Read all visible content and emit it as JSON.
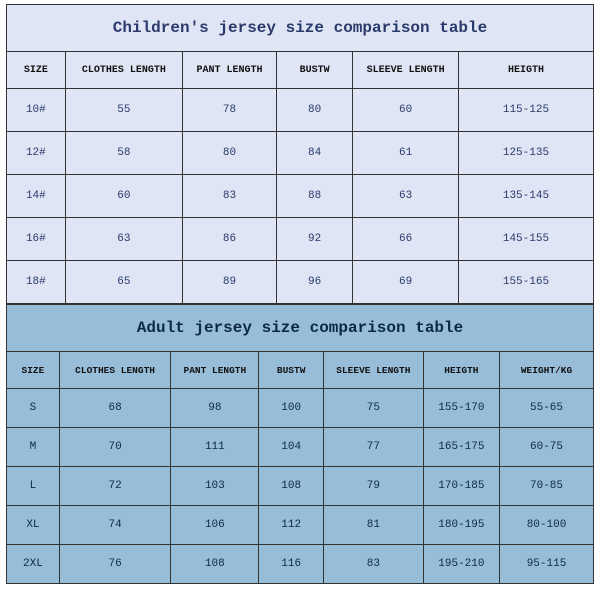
{
  "children": {
    "title": "Children's jersey size comparison table",
    "columns": [
      "SIZE",
      "CLOTHES LENGTH",
      "PANT LENGTH",
      "BUSTW",
      "SLEEVE LENGTH",
      "HEIGTH"
    ],
    "col_widths": [
      "10%",
      "20%",
      "16%",
      "13%",
      "18%",
      "23%"
    ],
    "rows": [
      [
        "10#",
        "55",
        "78",
        "80",
        "60",
        "115-125"
      ],
      [
        "12#",
        "58",
        "80",
        "84",
        "61",
        "125-135"
      ],
      [
        "14#",
        "60",
        "83",
        "88",
        "63",
        "135-145"
      ],
      [
        "16#",
        "63",
        "86",
        "92",
        "66",
        "145-155"
      ],
      [
        "18#",
        "65",
        "89",
        "96",
        "69",
        "155-165"
      ]
    ],
    "title_color": "#2a3a6a",
    "cell_bg": "#dfe5f5",
    "border_color": "#333333",
    "title_fontsize": 16,
    "head_fontsize": 10,
    "row_fontsize": 11
  },
  "adult": {
    "title": "Adult jersey size comparison table",
    "columns": [
      "SIZE",
      "CLOTHES LENGTH",
      "PANT LENGTH",
      "BUSTW",
      "SLEEVE LENGTH",
      "HEIGTH",
      "WEIGHT/KG"
    ],
    "col_widths": [
      "9%",
      "19%",
      "15%",
      "11%",
      "17%",
      "13%",
      "16%"
    ],
    "rows": [
      [
        "S",
        "68",
        "98",
        "100",
        "75",
        "155-170",
        "55-65"
      ],
      [
        "M",
        "70",
        "111",
        "104",
        "77",
        "165-175",
        "60-75"
      ],
      [
        "L",
        "72",
        "103",
        "108",
        "79",
        "170-185",
        "70-85"
      ],
      [
        "XL",
        "74",
        "106",
        "112",
        "81",
        "180-195",
        "80-100"
      ],
      [
        "2XL",
        "76",
        "108",
        "116",
        "83",
        "195-210",
        "95-115"
      ]
    ],
    "title_color": "#0d2a45",
    "cell_bg": "#97bdd9",
    "border_color": "#333333",
    "title_fontsize": 16,
    "head_fontsize": 9.5,
    "row_fontsize": 11
  }
}
